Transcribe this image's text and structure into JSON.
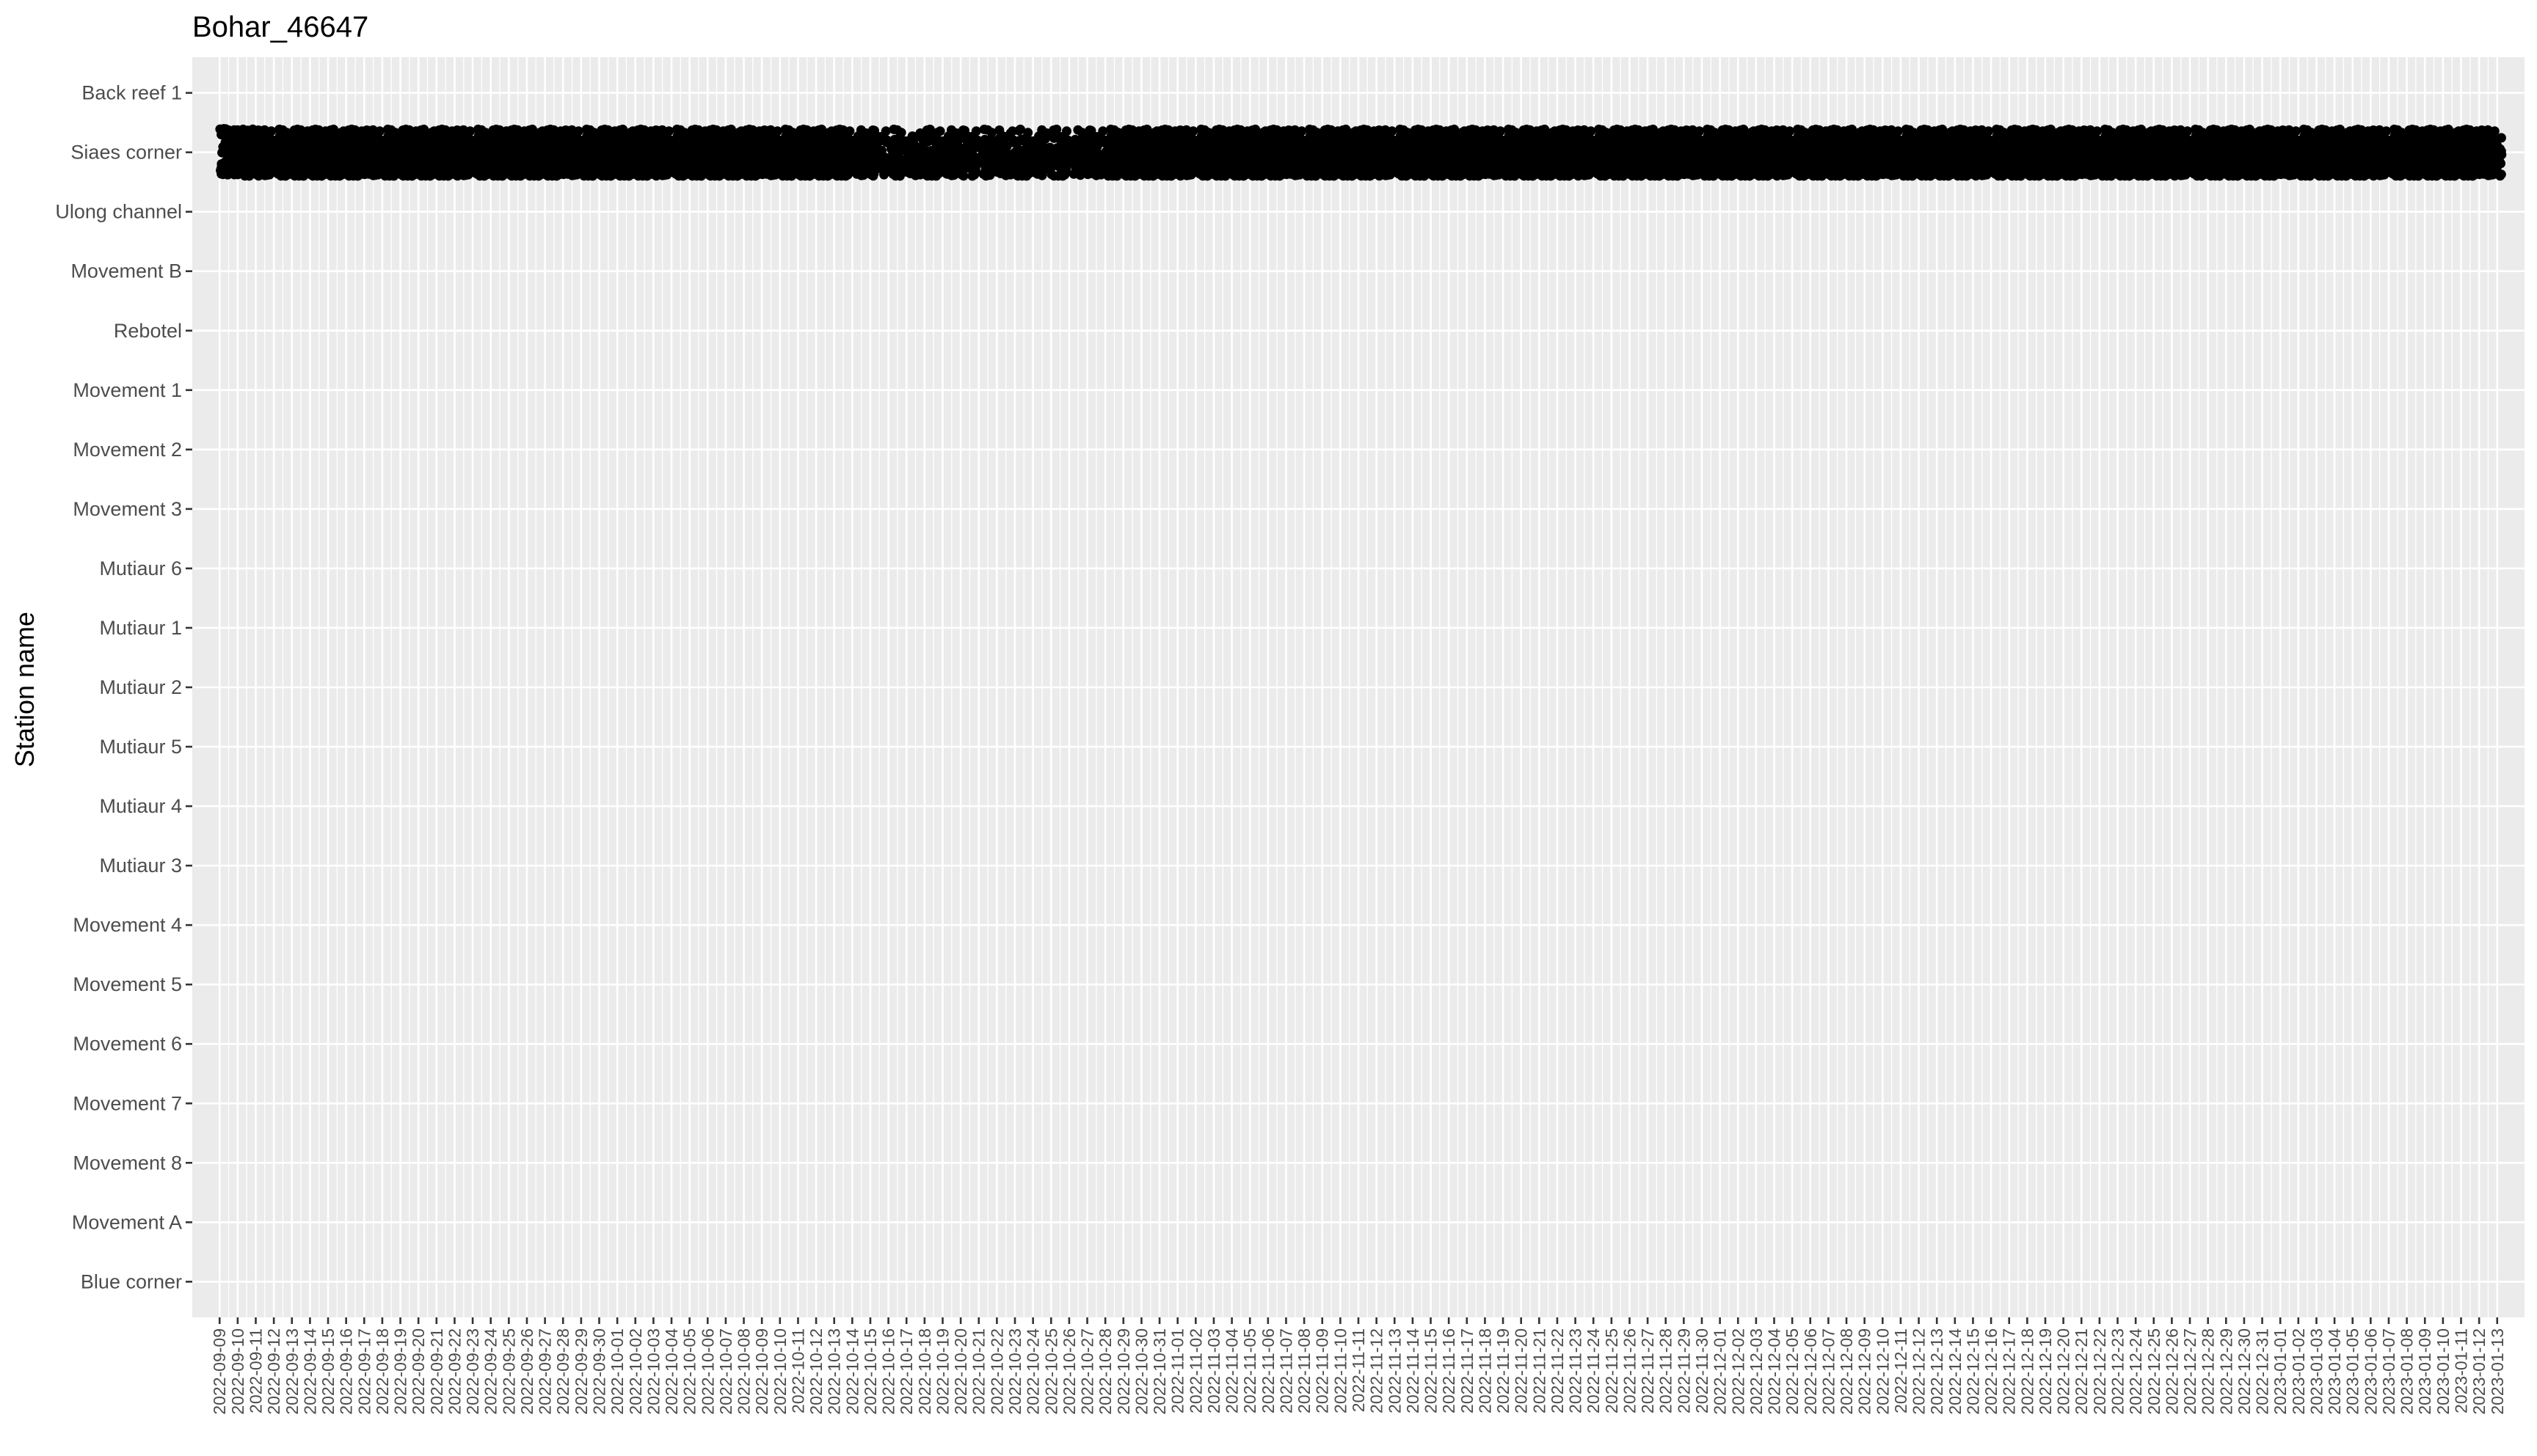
{
  "chart_data": {
    "type": "scatter",
    "title": "Bohar_46647",
    "xlabel": "",
    "ylabel": "Station name",
    "x_axis": {
      "scale": "date",
      "start": "2022-09-09",
      "end": "2023-01-13",
      "label_step_days": 1,
      "tick_rotation": -90
    },
    "categories": [
      "Back reef 1",
      "Siaes corner",
      "Ulong channel",
      "Movement B",
      "Rebotel",
      "Movement 1",
      "Movement 2",
      "Movement 3",
      "Mutiaur 6",
      "Mutiaur 1",
      "Mutiaur 2",
      "Mutiaur 5",
      "Mutiaur 4",
      "Mutiaur 3",
      "Movement 4",
      "Movement 5",
      "Movement 6",
      "Movement 7",
      "Movement 8",
      "Movement A",
      "Blue corner"
    ],
    "series": [
      {
        "station": "Siaes corner",
        "detections": "dense",
        "x_start": "2022-09-09",
        "x_end": "2023-01-13",
        "jitter": 0.4,
        "sparse_periods": [
          [
            "2022-10-14",
            "2022-10-27"
          ]
        ]
      }
    ],
    "point_color": "#000000",
    "grid": true,
    "legend": "none",
    "panel_background": "#ebebeb"
  }
}
